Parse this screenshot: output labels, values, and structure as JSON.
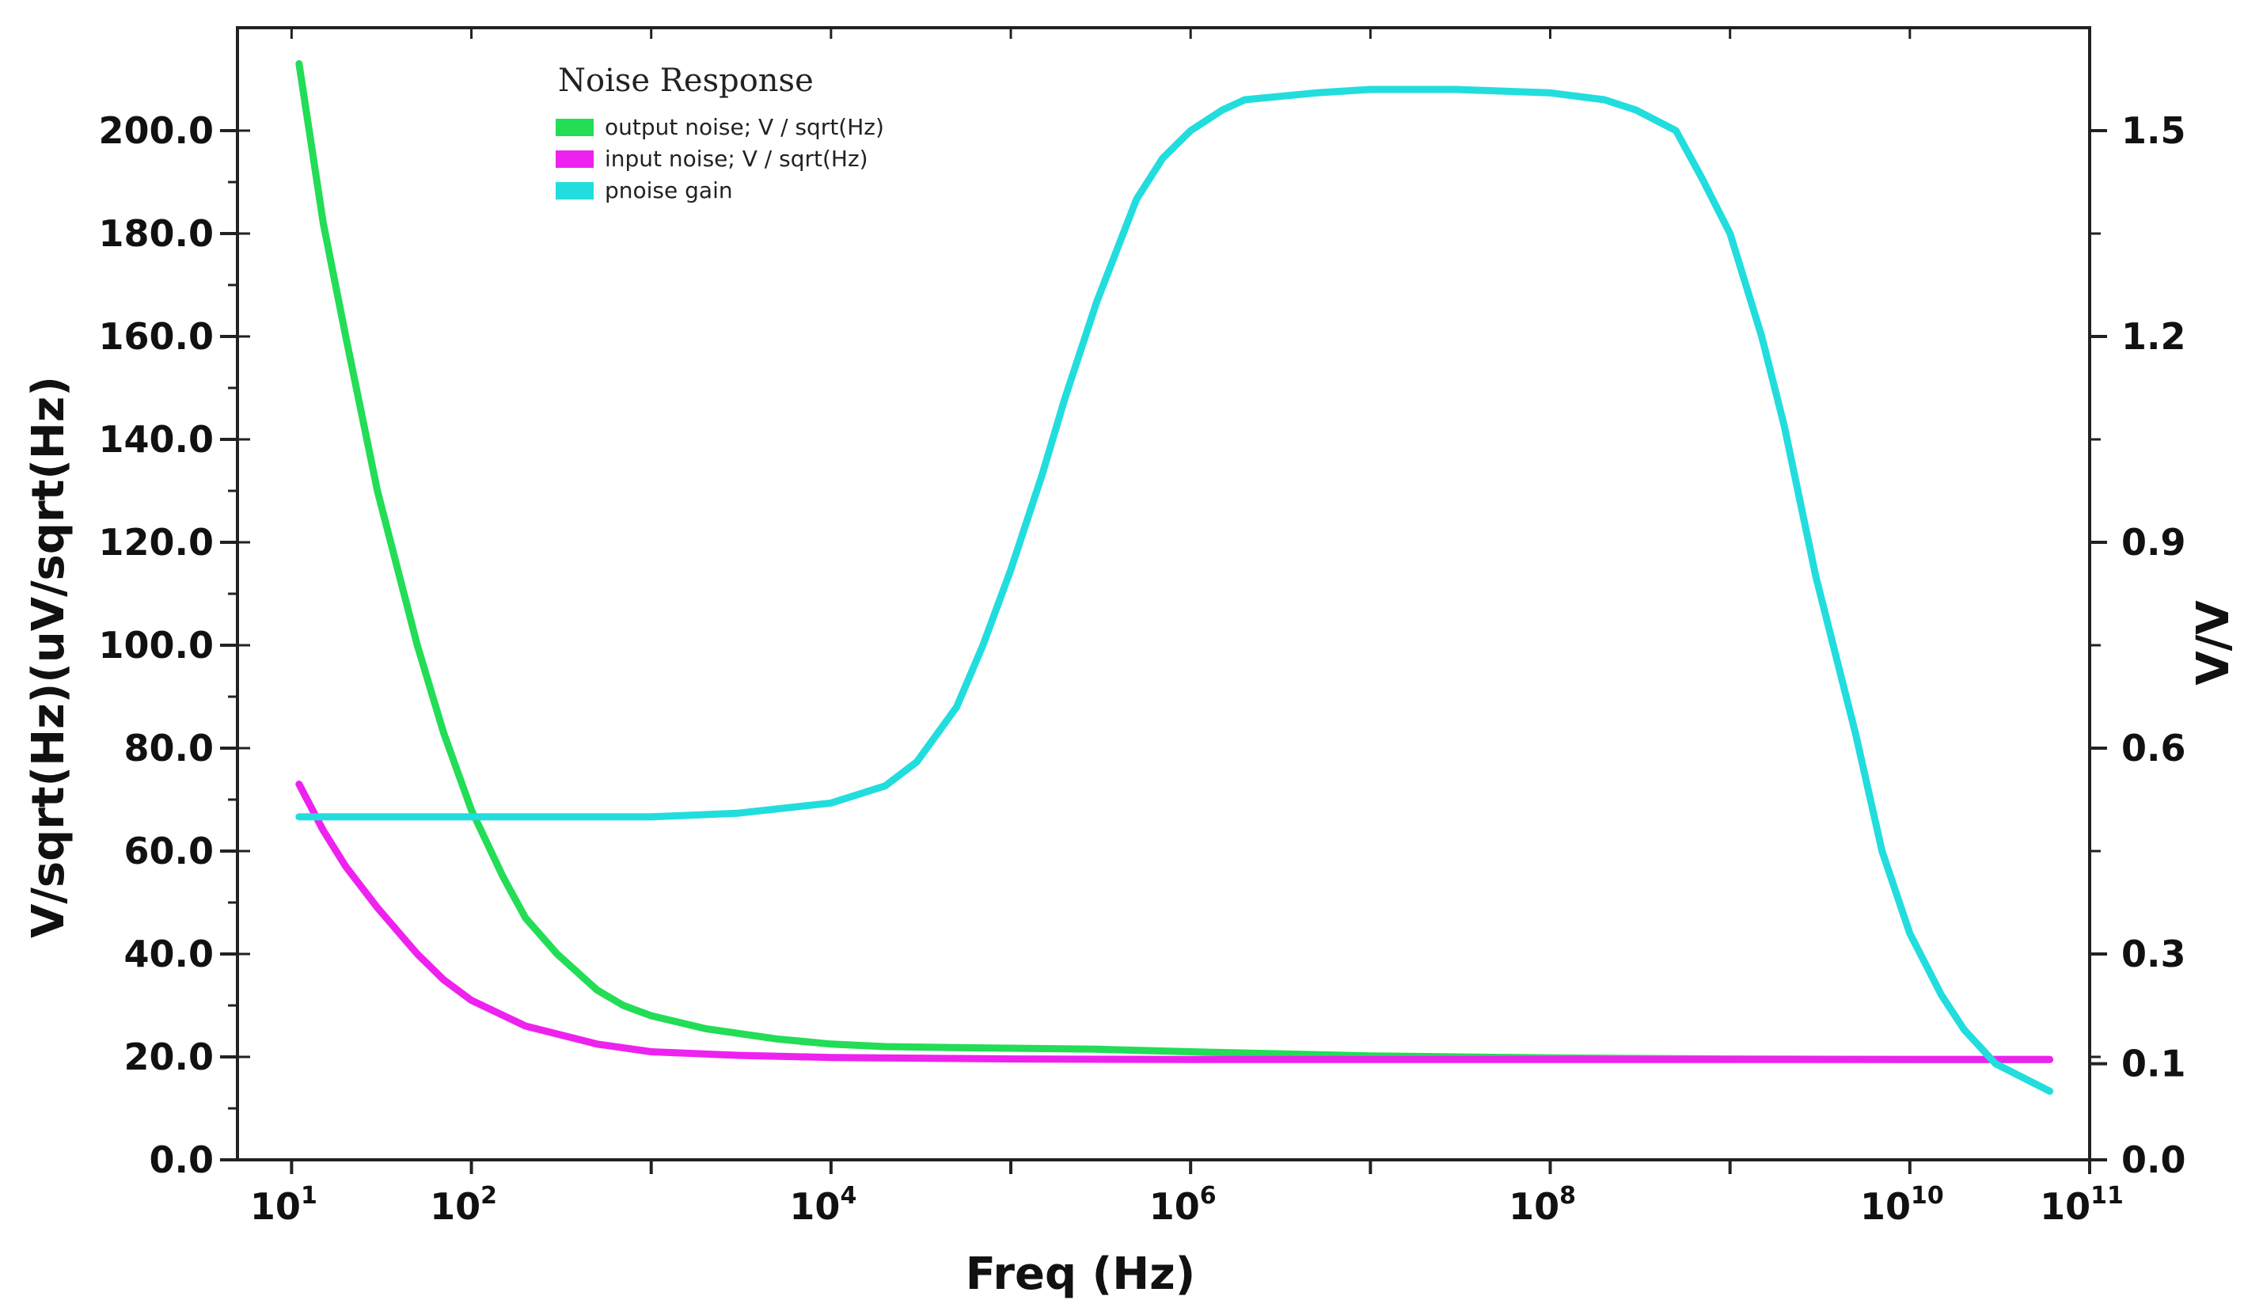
{
  "chart_data": {
    "type": "line",
    "legend": {
      "title": "Noise Response",
      "position": "top-left"
    },
    "xlabel": "Freq (Hz)",
    "xscale": "log",
    "xlim": [
      5,
      100000000000
    ],
    "x_ticks": [
      {
        "base": "10",
        "exp": "1",
        "value": 10
      },
      {
        "base": "10",
        "exp": "2",
        "value": 100
      },
      {
        "base": "10",
        "exp": "4",
        "value": 10000
      },
      {
        "base": "10",
        "exp": "6",
        "value": 1000000
      },
      {
        "base": "10",
        "exp": "8",
        "value": 100000000
      },
      {
        "base": "10",
        "exp": "10",
        "value": 10000000000
      },
      {
        "base": "10",
        "exp": "11",
        "value": 100000000000
      }
    ],
    "ylabel_left": "V/sqrt(Hz)(uV/sqrt(Hz)",
    "ylim_left": [
      0,
      220
    ],
    "yticks_left": [
      {
        "label": "0.0",
        "value": 0
      },
      {
        "label": "20.0",
        "value": 20
      },
      {
        "label": "40.0",
        "value": 40
      },
      {
        "label": "60.0",
        "value": 60
      },
      {
        "label": "80.0",
        "value": 80
      },
      {
        "label": "100.0",
        "value": 100
      },
      {
        "label": "120.0",
        "value": 120
      },
      {
        "label": "140.0",
        "value": 140
      },
      {
        "label": "160.0",
        "value": 160
      },
      {
        "label": "180.0",
        "value": 180
      },
      {
        "label": "200.0",
        "value": 200
      }
    ],
    "ylabel_right": "V/V",
    "ylim_right": [
      0,
      1.65
    ],
    "yticks_right": [
      {
        "label": "0.0",
        "value": 0
      },
      {
        "label": "0.1",
        "value": 0.14
      },
      {
        "label": "0.3",
        "value": 0.3
      },
      {
        "label": "0.6",
        "value": 0.6
      },
      {
        "label": "0.9",
        "value": 0.9
      },
      {
        "label": "1.2",
        "value": 1.2
      },
      {
        "label": "1.5",
        "value": 1.5
      }
    ],
    "series": [
      {
        "name": "output noise; V / sqrt(Hz)",
        "axis": "left",
        "color": "#22dd55",
        "x": [
          11,
          15,
          20,
          30,
          50,
          70,
          100,
          150,
          200,
          300,
          500,
          700,
          1000,
          2000,
          5000,
          10000,
          20000,
          50000,
          100000,
          300000,
          1000000,
          10000000,
          100000000,
          1000000000,
          10000000000,
          60000000000
        ],
        "y": [
          213,
          182,
          160,
          130,
          100,
          83,
          68,
          55,
          47,
          40,
          33,
          30,
          28,
          25.5,
          23.5,
          22.5,
          22,
          21.8,
          21.7,
          21.5,
          21,
          20.2,
          19.8,
          19.6,
          19.5,
          19.5
        ]
      },
      {
        "name": "input noise; V / sqrt(Hz)",
        "axis": "left",
        "color": "#ee22ee",
        "x": [
          11,
          15,
          20,
          30,
          50,
          70,
          100,
          200,
          500,
          1000,
          3000,
          10000,
          100000,
          1000000,
          10000000,
          100000000,
          1000000000,
          10000000000,
          60000000000
        ],
        "y": [
          73,
          64,
          57,
          49,
          40,
          35,
          31,
          26,
          22.5,
          21,
          20.3,
          19.9,
          19.6,
          19.5,
          19.5,
          19.5,
          19.5,
          19.5,
          19.5
        ]
      },
      {
        "name": "pnoise gain",
        "axis": "right",
        "color": "#22dddd",
        "x": [
          11,
          100,
          1000,
          3000,
          10000,
          20000,
          30000,
          50000,
          70000,
          100000,
          150000,
          200000,
          300000,
          500000,
          700000,
          1000000,
          1500000,
          2000000,
          5000000,
          10000000,
          30000000,
          100000000,
          200000000,
          300000000,
          500000000,
          700000000,
          1000000000,
          1500000000,
          2000000000,
          3000000000,
          5000000000,
          7000000000,
          10000000000,
          15000000000,
          20000000000,
          30000000000,
          60000000000
        ],
        "y": [
          0.5,
          0.5,
          0.5,
          0.505,
          0.52,
          0.545,
          0.58,
          0.66,
          0.75,
          0.86,
          1.0,
          1.11,
          1.25,
          1.4,
          1.46,
          1.5,
          1.53,
          1.545,
          1.555,
          1.56,
          1.56,
          1.555,
          1.545,
          1.53,
          1.5,
          1.43,
          1.35,
          1.2,
          1.07,
          0.85,
          0.62,
          0.45,
          0.33,
          0.24,
          0.19,
          0.14,
          0.1
        ]
      }
    ]
  }
}
